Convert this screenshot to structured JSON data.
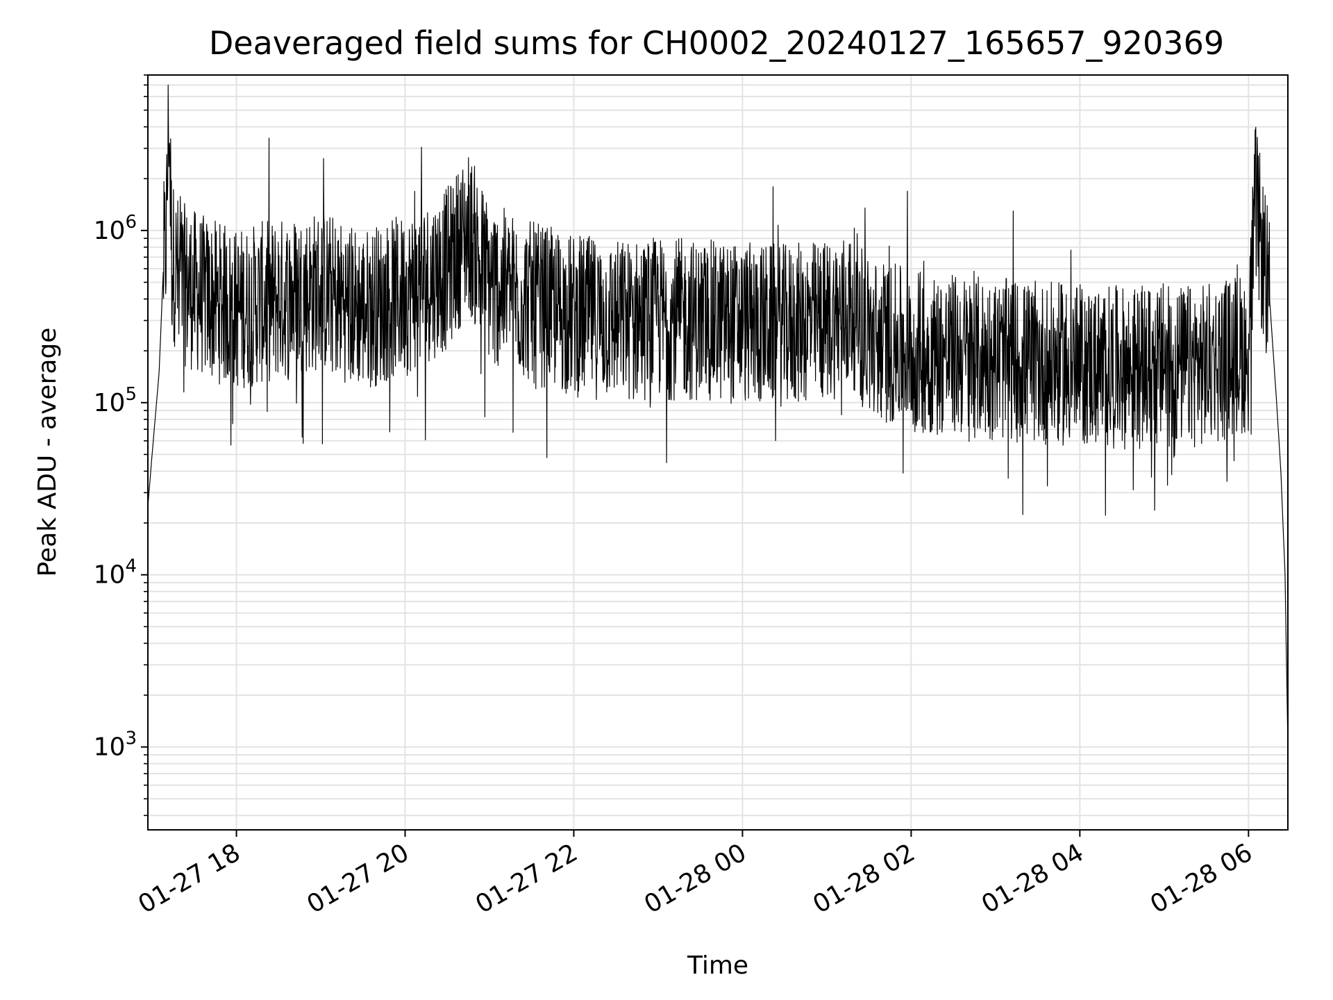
{
  "chart_data": {
    "type": "line",
    "title": "Deaveraged field sums for CH0002_20240127_165657_920369",
    "xlabel": "Time",
    "ylabel": "Peak ADU - average",
    "yscale": "log",
    "ylim": [
      330,
      8000000
    ],
    "xlim": [
      "2024-01-27 16:57",
      "2024-01-28 06:28"
    ],
    "grid": "both, major and minor on y",
    "line_color": "#000000",
    "x_ticks": [
      {
        "value": "2024-01-27 18:00",
        "label": "01-27 18"
      },
      {
        "value": "2024-01-27 20:00",
        "label": "01-27 20"
      },
      {
        "value": "2024-01-27 22:00",
        "label": "01-27 22"
      },
      {
        "value": "2024-01-28 00:00",
        "label": "01-28 00"
      },
      {
        "value": "2024-01-28 02:00",
        "label": "01-28 02"
      },
      {
        "value": "2024-01-28 04:00",
        "label": "01-28 04"
      },
      {
        "value": "2024-01-28 06:00",
        "label": "01-28 06"
      }
    ],
    "y_ticks": [
      {
        "value": 1000,
        "base": "10",
        "exp": "3"
      },
      {
        "value": 10000,
        "base": "10",
        "exp": "4"
      },
      {
        "value": 100000,
        "base": "10",
        "exp": "5"
      },
      {
        "value": 1000000,
        "base": "10",
        "exp": "6"
      }
    ],
    "series": [
      {
        "x": [
          "2024-01-27 16:57",
          "2024-01-27 17:00",
          "2024-01-27 17:05",
          "2024-01-27 17:08",
          "2024-01-27 17:10",
          "2024-01-27 17:12",
          "2024-01-27 17:14",
          "2024-01-27 17:20",
          "2024-01-27 17:40",
          "2024-01-27 18:00",
          "2024-01-27 18:30",
          "2024-01-27 19:00",
          "2024-01-27 19:30",
          "2024-01-27 20:00",
          "2024-01-27 20:30",
          "2024-01-27 20:45",
          "2024-01-27 21:00",
          "2024-01-27 21:30",
          "2024-01-27 22:00",
          "2024-01-27 22:30",
          "2024-01-27 23:00",
          "2024-01-27 23:30",
          "2024-01-28 00:00",
          "2024-01-28 00:30",
          "2024-01-28 01:00",
          "2024-01-28 01:20",
          "2024-01-28 01:30",
          "2024-01-28 02:00",
          "2024-01-28 02:30",
          "2024-01-28 03:00",
          "2024-01-28 03:30",
          "2024-01-28 04:00",
          "2024-01-28 04:30",
          "2024-01-28 05:00",
          "2024-01-28 05:30",
          "2024-01-28 06:00",
          "2024-01-28 06:05",
          "2024-01-28 06:10",
          "2024-01-28 06:15",
          "2024-01-28 06:20",
          "2024-01-28 06:23",
          "2024-01-28 06:26",
          "2024-01-28 06:28"
        ],
        "y": [
          25000,
          50000,
          150000,
          600000,
          900000,
          5000000,
          700000,
          500000,
          400000,
          350000,
          400000,
          450000,
          350000,
          420000,
          600000,
          1000000,
          500000,
          380000,
          320000,
          300000,
          310000,
          300000,
          290000,
          280000,
          300000,
          350000,
          240000,
          200000,
          190000,
          180000,
          170000,
          165000,
          160000,
          160000,
          165000,
          200000,
          1500000,
          700000,
          400000,
          100000,
          40000,
          10000,
          1000
        ]
      }
    ]
  }
}
